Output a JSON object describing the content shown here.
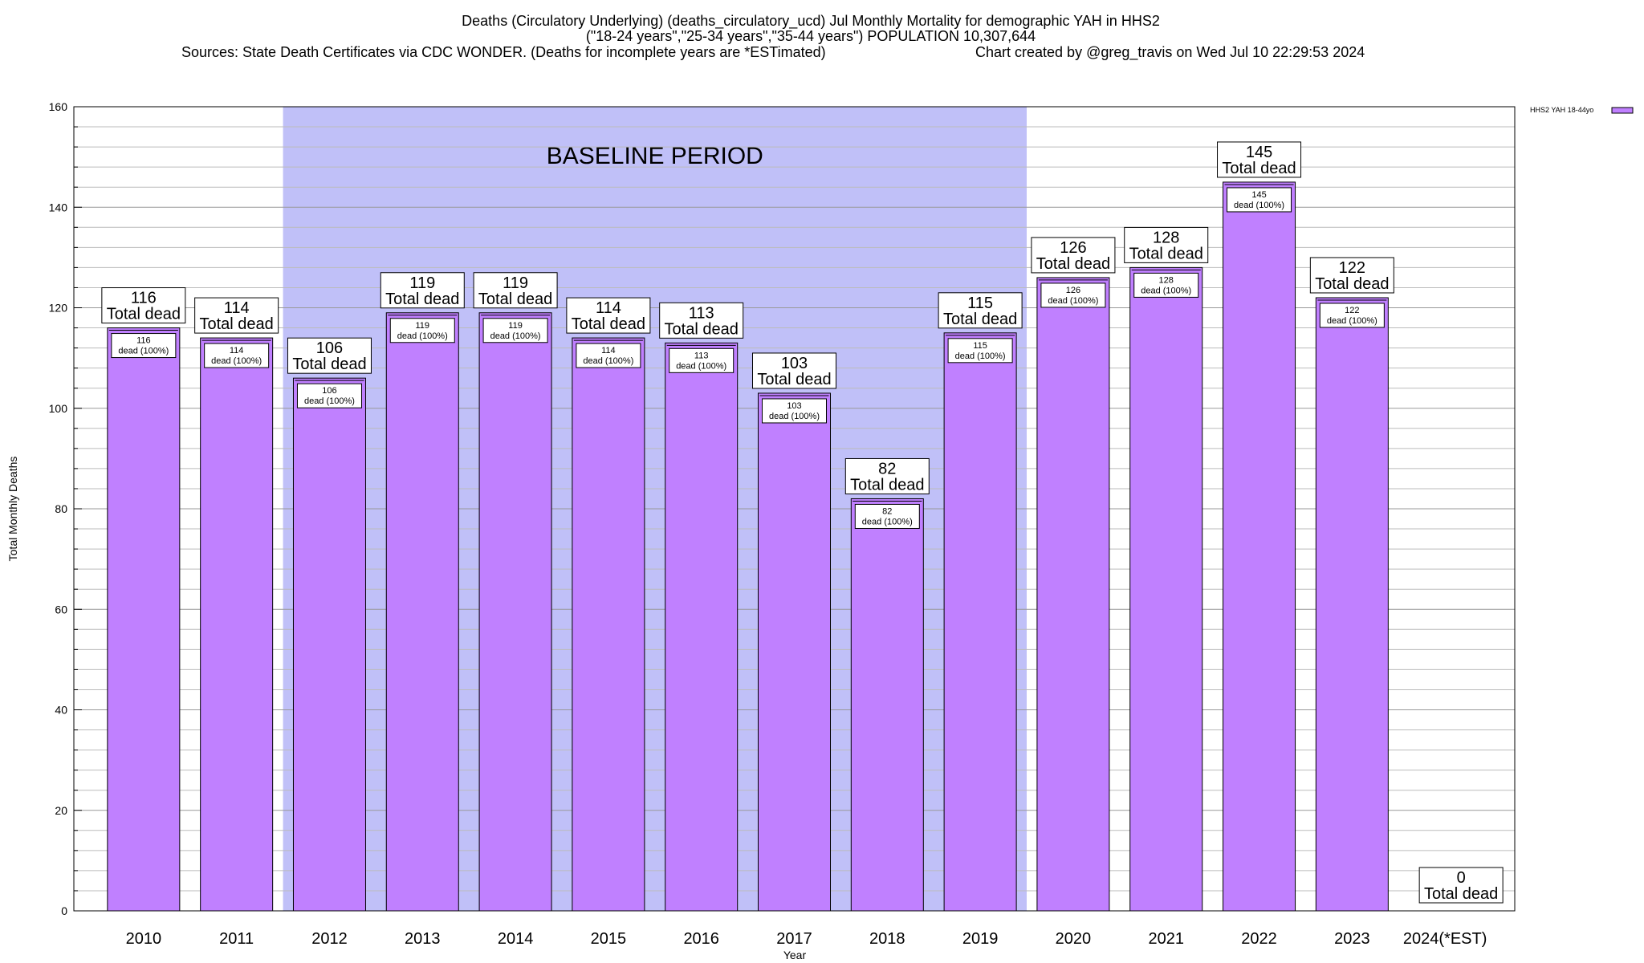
{
  "chart_data": {
    "type": "bar",
    "title": "Deaths (Circulatory Underlying) (deaths_circulatory_ucd) Jul Monthly Mortality for demographic YAH in HHS2",
    "subtitle": "(\"18-24 years\",\"25-34 years\",\"35-44 years\") POPULATION 10,307,644",
    "sources": "Sources: State Death Certificates via CDC WONDER. (Deaths for incomplete years are *ESTimated)",
    "credit": "Chart created by @greg_travis on Wed Jul 10 22:29:53 2024",
    "xlabel": "Year",
    "ylabel": "Total Monthly Deaths",
    "ylim": [
      0,
      160
    ],
    "yticks": [
      "0",
      "20",
      "40",
      "60",
      "80",
      "100",
      "120",
      "140",
      "160"
    ],
    "grid": "horizontal minor lines every 4",
    "legend_position": "top-right",
    "series": [
      {
        "name": "HHS2 YAH 18-44yo",
        "color": "#c080ff",
        "values": [
          116,
          114,
          106,
          119,
          119,
          114,
          113,
          103,
          82,
          115,
          126,
          128,
          145,
          122,
          0
        ]
      }
    ],
    "categories": [
      "2010",
      "2011",
      "2012",
      "2013",
      "2014",
      "2015",
      "2016",
      "2017",
      "2018",
      "2019",
      "2020",
      "2021",
      "2022",
      "2023",
      "2024(*EST)"
    ],
    "baseline": {
      "label": "BASELINE PERIOD",
      "from": "2012",
      "to": "2019",
      "color": "#c0c0f8"
    },
    "total_label_suffix": "Total dead",
    "inner_label_suffix": "dead (100%)",
    "inner_labels": [
      "116",
      "114",
      "106",
      "119",
      "119",
      "114",
      "113",
      "103",
      "82",
      "115",
      "126",
      "128",
      "145",
      "122"
    ],
    "total_labels": [
      "116",
      "114",
      "106",
      "119",
      "119",
      "114",
      "113",
      "103",
      "82",
      "115",
      "126",
      "128",
      "145",
      "122",
      "0"
    ]
  }
}
